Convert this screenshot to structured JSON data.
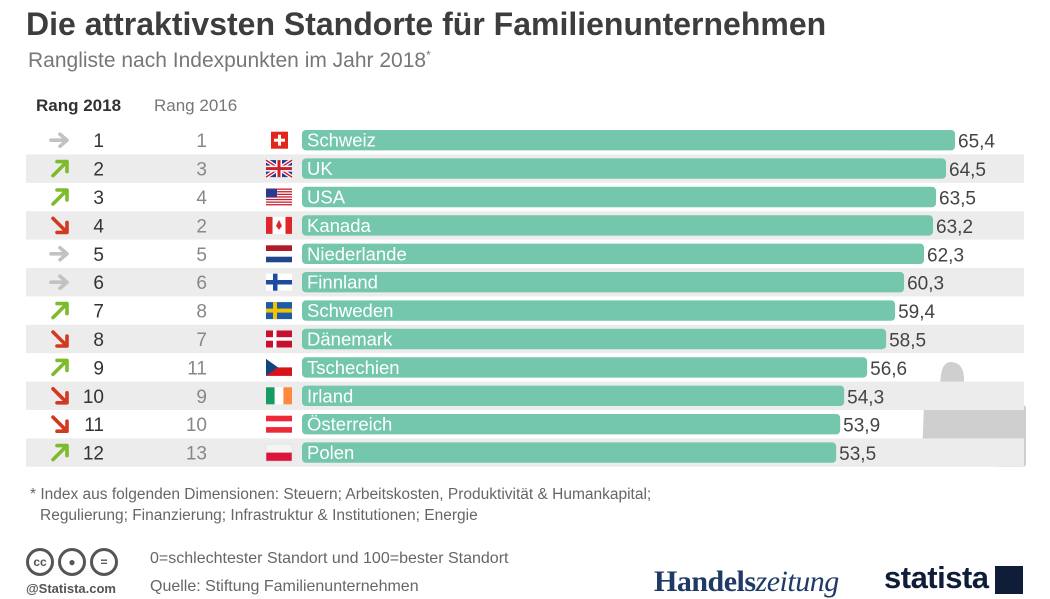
{
  "title": "Die attraktivsten Standorte für Familienunternehmen",
  "subtitle": "Rangliste nach Indexpunkten im Jahr 2018",
  "subtitle_mark": "*",
  "headers": {
    "rank2018": "Rang 2018",
    "rank2016": "Rang 2016"
  },
  "colors": {
    "bar": "#74c6ac",
    "row_alt": "#ececec",
    "arrow_same": "#c2c2c2",
    "arrow_up": "#7dbb2a",
    "arrow_down": "#d13a20"
  },
  "chart_data": {
    "type": "bar",
    "orientation": "horizontal",
    "xlim": [
      0,
      65.4
    ],
    "rows": [
      {
        "rank2018": "1",
        "rank2016": "1",
        "trend": "same",
        "flag": "ch",
        "country": "Schweiz",
        "value": 65.4,
        "label": "65,4"
      },
      {
        "rank2018": "2",
        "rank2016": "3",
        "trend": "up",
        "flag": "uk",
        "country": "UK",
        "value": 64.5,
        "label": "64,5"
      },
      {
        "rank2018": "3",
        "rank2016": "4",
        "trend": "up",
        "flag": "us",
        "country": "USA",
        "value": 63.5,
        "label": "63,5"
      },
      {
        "rank2018": "4",
        "rank2016": "2",
        "trend": "down",
        "flag": "ca",
        "country": "Kanada",
        "value": 63.2,
        "label": "63,2"
      },
      {
        "rank2018": "5",
        "rank2016": "5",
        "trend": "same",
        "flag": "nl",
        "country": "Niederlande",
        "value": 62.3,
        "label": "62,3"
      },
      {
        "rank2018": "6",
        "rank2016": "6",
        "trend": "same",
        "flag": "fi",
        "country": "Finnland",
        "value": 60.3,
        "label": "60,3"
      },
      {
        "rank2018": "7",
        "rank2016": "8",
        "trend": "up",
        "flag": "se",
        "country": "Schweden",
        "value": 59.4,
        "label": "59,4"
      },
      {
        "rank2018": "8",
        "rank2016": "7",
        "trend": "down",
        "flag": "dk",
        "country": "Dänemark",
        "value": 58.5,
        "label": "58,5"
      },
      {
        "rank2018": "9",
        "rank2016": "11",
        "trend": "up",
        "flag": "cz",
        "country": "Tschechien",
        "value": 56.6,
        "label": "56,6"
      },
      {
        "rank2018": "10",
        "rank2016": "9",
        "trend": "down",
        "flag": "ie",
        "country": "Irland",
        "value": 54.3,
        "label": "54,3"
      },
      {
        "rank2018": "11",
        "rank2016": "10",
        "trend": "down",
        "flag": "at",
        "country": "Österreich",
        "value": 53.9,
        "label": "53,9"
      },
      {
        "rank2018": "12",
        "rank2016": "13",
        "trend": "up",
        "flag": "pl",
        "country": "Polen",
        "value": 53.5,
        "label": "53,5"
      }
    ]
  },
  "footnote": {
    "line1": "* Index aus folgenden Dimensionen: Steuern; Arbeitskosten, Produktivität & Humankapital;",
    "line2": "Regulierung; Finanzierung; Infrastruktur & Institutionen; Energie"
  },
  "scale_note": "0=schlechtester Standort und 100=bester Standort",
  "source": "Quelle: Stiftung Familienunternehmen",
  "credit": "@Statista.com",
  "logos": {
    "hz_main": "Handels",
    "hz_tail": "zeitung",
    "statista": "statista"
  }
}
